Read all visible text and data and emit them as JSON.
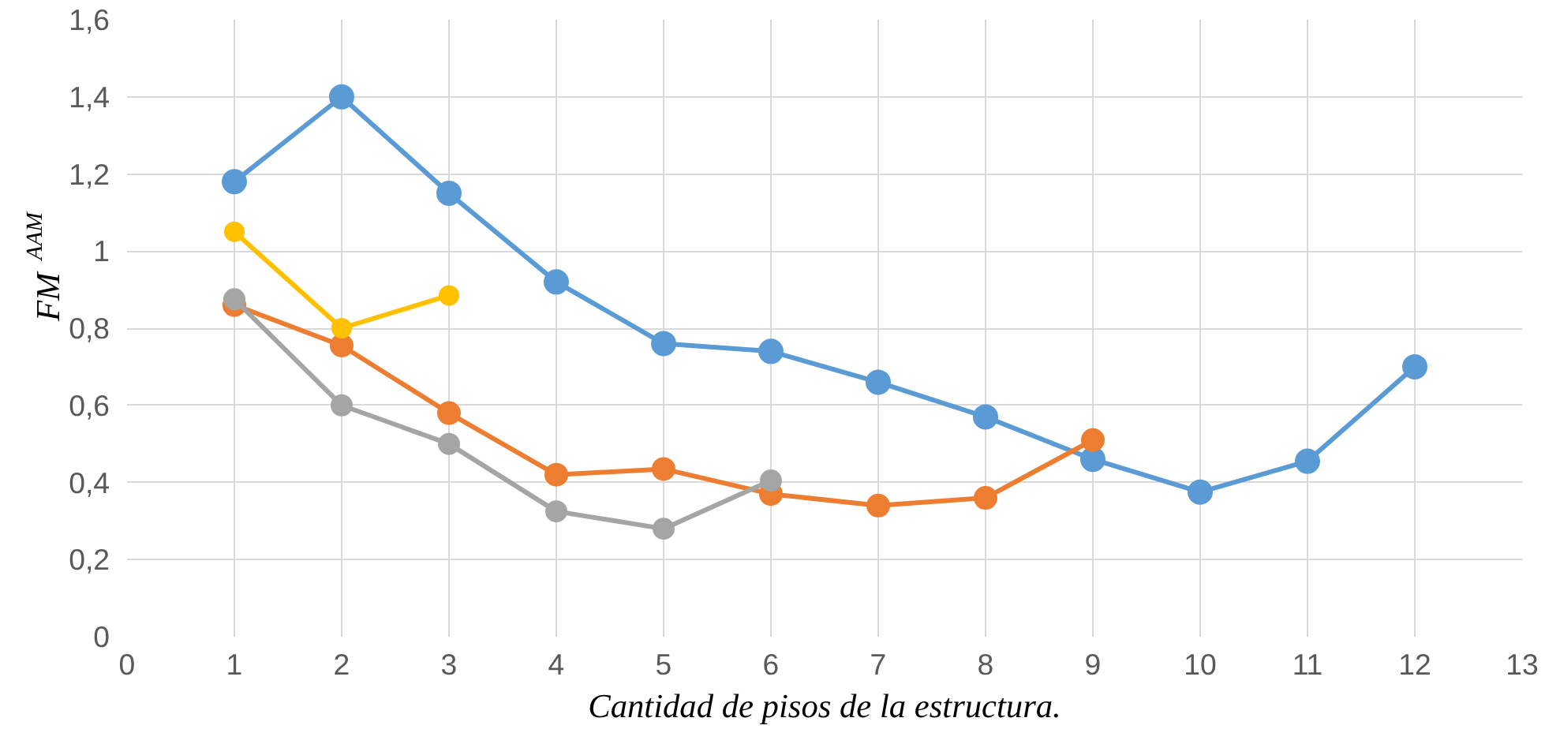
{
  "chart_data": {
    "type": "line",
    "xlabel": "Cantidad de pisos de la estructura.",
    "ylabel": "FM$_{AAM}$",
    "xlim": [
      0,
      13
    ],
    "xticks": [
      0,
      1,
      2,
      3,
      4,
      5,
      6,
      7,
      8,
      9,
      10,
      11,
      12,
      13
    ],
    "ylim": [
      0,
      1.6
    ],
    "yticks": [
      {
        "value": 0,
        "label": "0"
      },
      {
        "value": 0.2,
        "label": "0,2"
      },
      {
        "value": 0.4,
        "label": "0,4"
      },
      {
        "value": 0.6,
        "label": "0,6"
      },
      {
        "value": 0.8,
        "label": "0,8"
      },
      {
        "value": 1,
        "label": "1"
      },
      {
        "value": 1.2,
        "label": "1,2"
      },
      {
        "value": 1.4,
        "label": "1,4"
      },
      {
        "value": 1.6,
        "label": "1,6"
      }
    ],
    "grid": true,
    "marker": "circle",
    "line_style": "solid",
    "series": [
      {
        "color": "#5b9bd5",
        "x": [
          1,
          2,
          3,
          4,
          5,
          6,
          7,
          8,
          9,
          10,
          11,
          12
        ],
        "values": [
          1.18,
          1.4,
          1.15,
          0.92,
          0.76,
          0.74,
          0.66,
          0.57,
          0.46,
          0.375,
          0.455,
          0.7
        ]
      },
      {
        "color": "#ed7d31",
        "x": [
          1,
          2,
          3,
          4,
          5,
          6,
          7,
          8,
          9
        ],
        "values": [
          0.86,
          0.755,
          0.58,
          0.42,
          0.435,
          0.37,
          0.34,
          0.36,
          0.51
        ]
      },
      {
        "color": "#a5a5a5",
        "x": [
          1,
          2,
          3,
          4,
          5,
          6
        ],
        "values": [
          0.875,
          0.6,
          0.5,
          0.325,
          0.28,
          0.405
        ]
      },
      {
        "color": "#ffc000",
        "x": [
          1,
          2,
          3
        ],
        "values": [
          1.05,
          0.8,
          0.885
        ]
      }
    ]
  }
}
